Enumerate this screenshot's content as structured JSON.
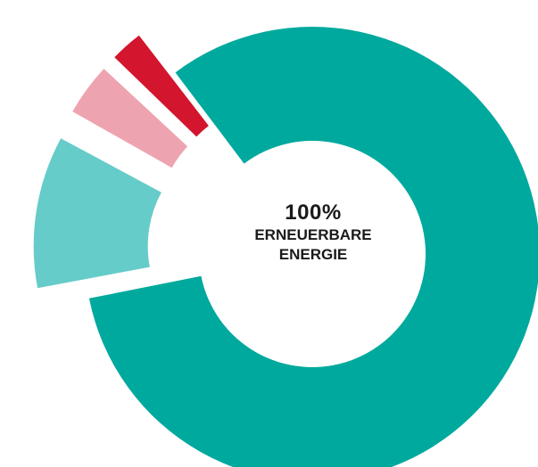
{
  "chart_data": {
    "type": "pie",
    "title": "",
    "center_label": {
      "value": "100%",
      "line1": "ERNEUERBARE",
      "line2": "ENERGIE"
    },
    "slices": [
      {
        "value": 81.0,
        "color": "#00a99d",
        "exploded": false
      },
      {
        "value": 11.0,
        "color": "#66ccc9",
        "exploded": true
      },
      {
        "value": 4.0,
        "color": "#eea4b0",
        "exploded": true
      },
      {
        "value": 2.6,
        "color": "#d3152e",
        "exploded": true
      }
    ],
    "legend": "none",
    "grid": false
  }
}
